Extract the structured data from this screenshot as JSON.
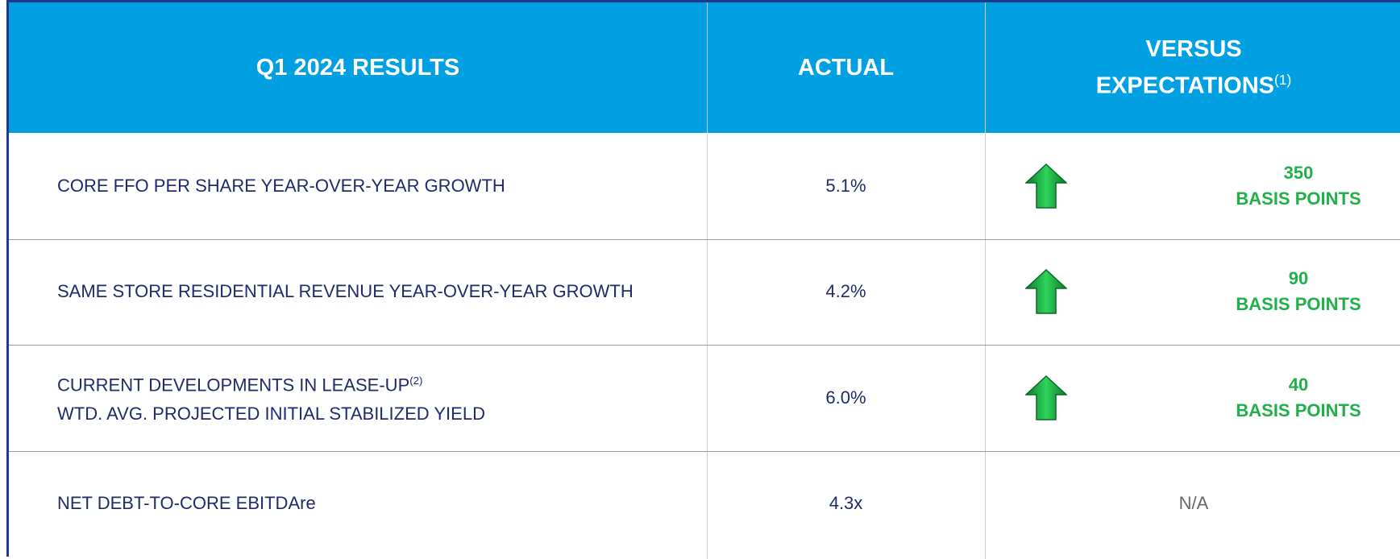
{
  "table": {
    "header": {
      "results": "Q1 2024 RESULTS",
      "actual": "ACTUAL",
      "versus": [
        "VERSUS",
        "EXPECTATIONS"
      ],
      "versus_note": "(1)"
    },
    "rows": [
      {
        "label": [
          "CORE FFO PER SHARE YEAR-OVER-YEAR GROWTH"
        ],
        "actual": "5.1%",
        "versus": [
          "350",
          "BASIS POINTS"
        ]
      },
      {
        "label": [
          "SAME STORE RESIDENTIAL REVENUE YEAR-OVER-YEAR GROWTH"
        ],
        "actual": "4.2%",
        "versus": [
          "90",
          "BASIS POINTS"
        ]
      },
      {
        "label": [
          "CURRENT DEVELOPMENTS IN LEASE-UP",
          "WTD. AVG. PROJECTED INITIAL STABILIZED YIELD"
        ],
        "label_note": "(2)",
        "actual": "6.0%",
        "versus": [
          "40",
          "BASIS POINTS"
        ]
      },
      {
        "label": [
          "NET DEBT-TO-CORE EBITDAre"
        ],
        "actual": "4.3x",
        "versus_text": "N/A"
      }
    ]
  }
}
